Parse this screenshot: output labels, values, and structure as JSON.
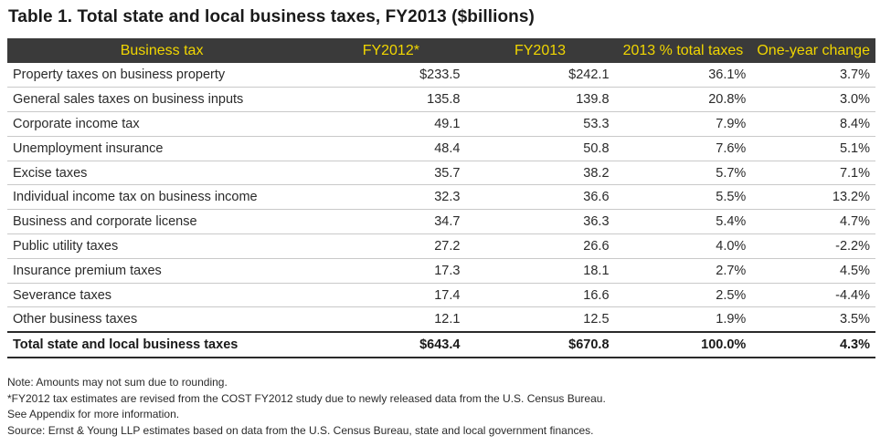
{
  "title": "Table 1. Total state and local business taxes, FY2013 ($billions)",
  "columns": [
    "Business tax",
    "FY2012*",
    "FY2013",
    "2013 % total taxes",
    "One-year change"
  ],
  "rows": [
    [
      "Property taxes on business property",
      "$233.5",
      "$242.1",
      "36.1%",
      "3.7%"
    ],
    [
      "General sales taxes on business inputs",
      "135.8",
      "139.8",
      "20.8%",
      "3.0%"
    ],
    [
      "Corporate income tax",
      "49.1",
      "53.3",
      "7.9%",
      "8.4%"
    ],
    [
      "Unemployment insurance",
      "48.4",
      "50.8",
      "7.6%",
      "5.1%"
    ],
    [
      "Excise taxes",
      "35.7",
      "38.2",
      "5.7%",
      "7.1%"
    ],
    [
      "Individual income tax on business income",
      "32.3",
      "36.6",
      "5.5%",
      "13.2%"
    ],
    [
      "Business and corporate license",
      "34.7",
      "36.3",
      "5.4%",
      "4.7%"
    ],
    [
      "Public utility taxes",
      "27.2",
      "26.6",
      "4.0%",
      "-2.2%"
    ],
    [
      "Insurance premium taxes",
      "17.3",
      "18.1",
      "2.7%",
      "4.5%"
    ],
    [
      "Severance taxes",
      "17.4",
      "16.6",
      "2.5%",
      "-4.4%"
    ],
    [
      "Other business taxes",
      "12.1",
      "12.5",
      "1.9%",
      "3.5%"
    ]
  ],
  "total": [
    "Total state and local business taxes",
    "$643.4",
    "$670.8",
    "100.0%",
    "4.3%"
  ],
  "notes": [
    "Note: Amounts may not sum due to rounding.",
    "*FY2012 tax estimates are revised from the COST FY2012 study due to newly released data from the U.S. Census Bureau.",
    "See Appendix for more information.",
    "Source: Ernst & Young LLP estimates based on data from the U.S. Census Bureau, state and local government finances."
  ],
  "colors": {
    "header_bg": "#3a3a3a",
    "header_text": "#f1d600"
  }
}
